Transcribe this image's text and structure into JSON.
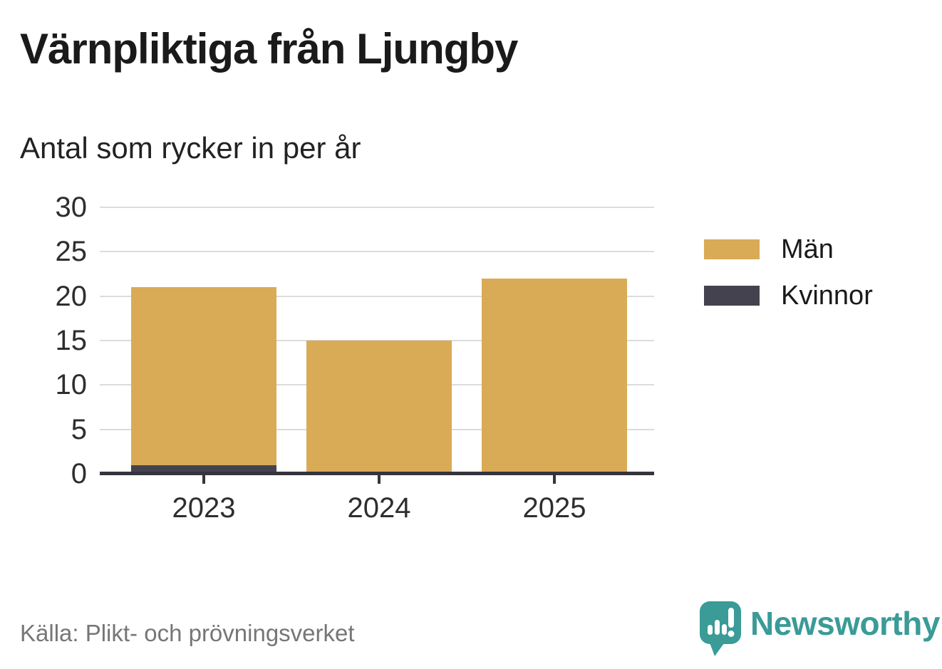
{
  "title": "Värnpliktiga från Ljungby",
  "subtitle": "Antal som rycker in per år",
  "source_note": "Källa: Plikt- och prövningsverket",
  "branding": {
    "name": "Newsworthy",
    "icon": "newsworthy-speech-bubble-bar-chart-icon",
    "color": "#3A9B97"
  },
  "colors": {
    "men_bar": "#D9AB57",
    "women_bar": "#454250",
    "axis": "#35343E",
    "gridline": "#DCDCDC",
    "title_text": "#1A1A1A",
    "tick_text": "#2E2E2E",
    "source_text": "#767676",
    "background": "#FFFFFF"
  },
  "legend": {
    "items": [
      {
        "label": "Män",
        "color": "#D9AB57"
      },
      {
        "label": "Kvinnor",
        "color": "#454250"
      }
    ]
  },
  "chart_data": {
    "type": "bar",
    "stacked": true,
    "title": "Värnpliktiga från Ljungby",
    "subtitle": "Antal som rycker in per år",
    "categories": [
      "2023",
      "2024",
      "2025"
    ],
    "series": [
      {
        "name": "Män",
        "color": "#D9AB57",
        "values": [
          20,
          15,
          22
        ]
      },
      {
        "name": "Kvinnor",
        "color": "#454250",
        "values": [
          1,
          0,
          0
        ]
      }
    ],
    "stack_order_bottom_to_top": [
      "Kvinnor",
      "Män"
    ],
    "totals": [
      21,
      15,
      22
    ],
    "xlabel": "",
    "ylabel": "",
    "ylim": [
      0,
      30
    ],
    "yticks": [
      0,
      5,
      10,
      15,
      20,
      25,
      30
    ],
    "grid": "horizontal",
    "legend_position": "right"
  }
}
